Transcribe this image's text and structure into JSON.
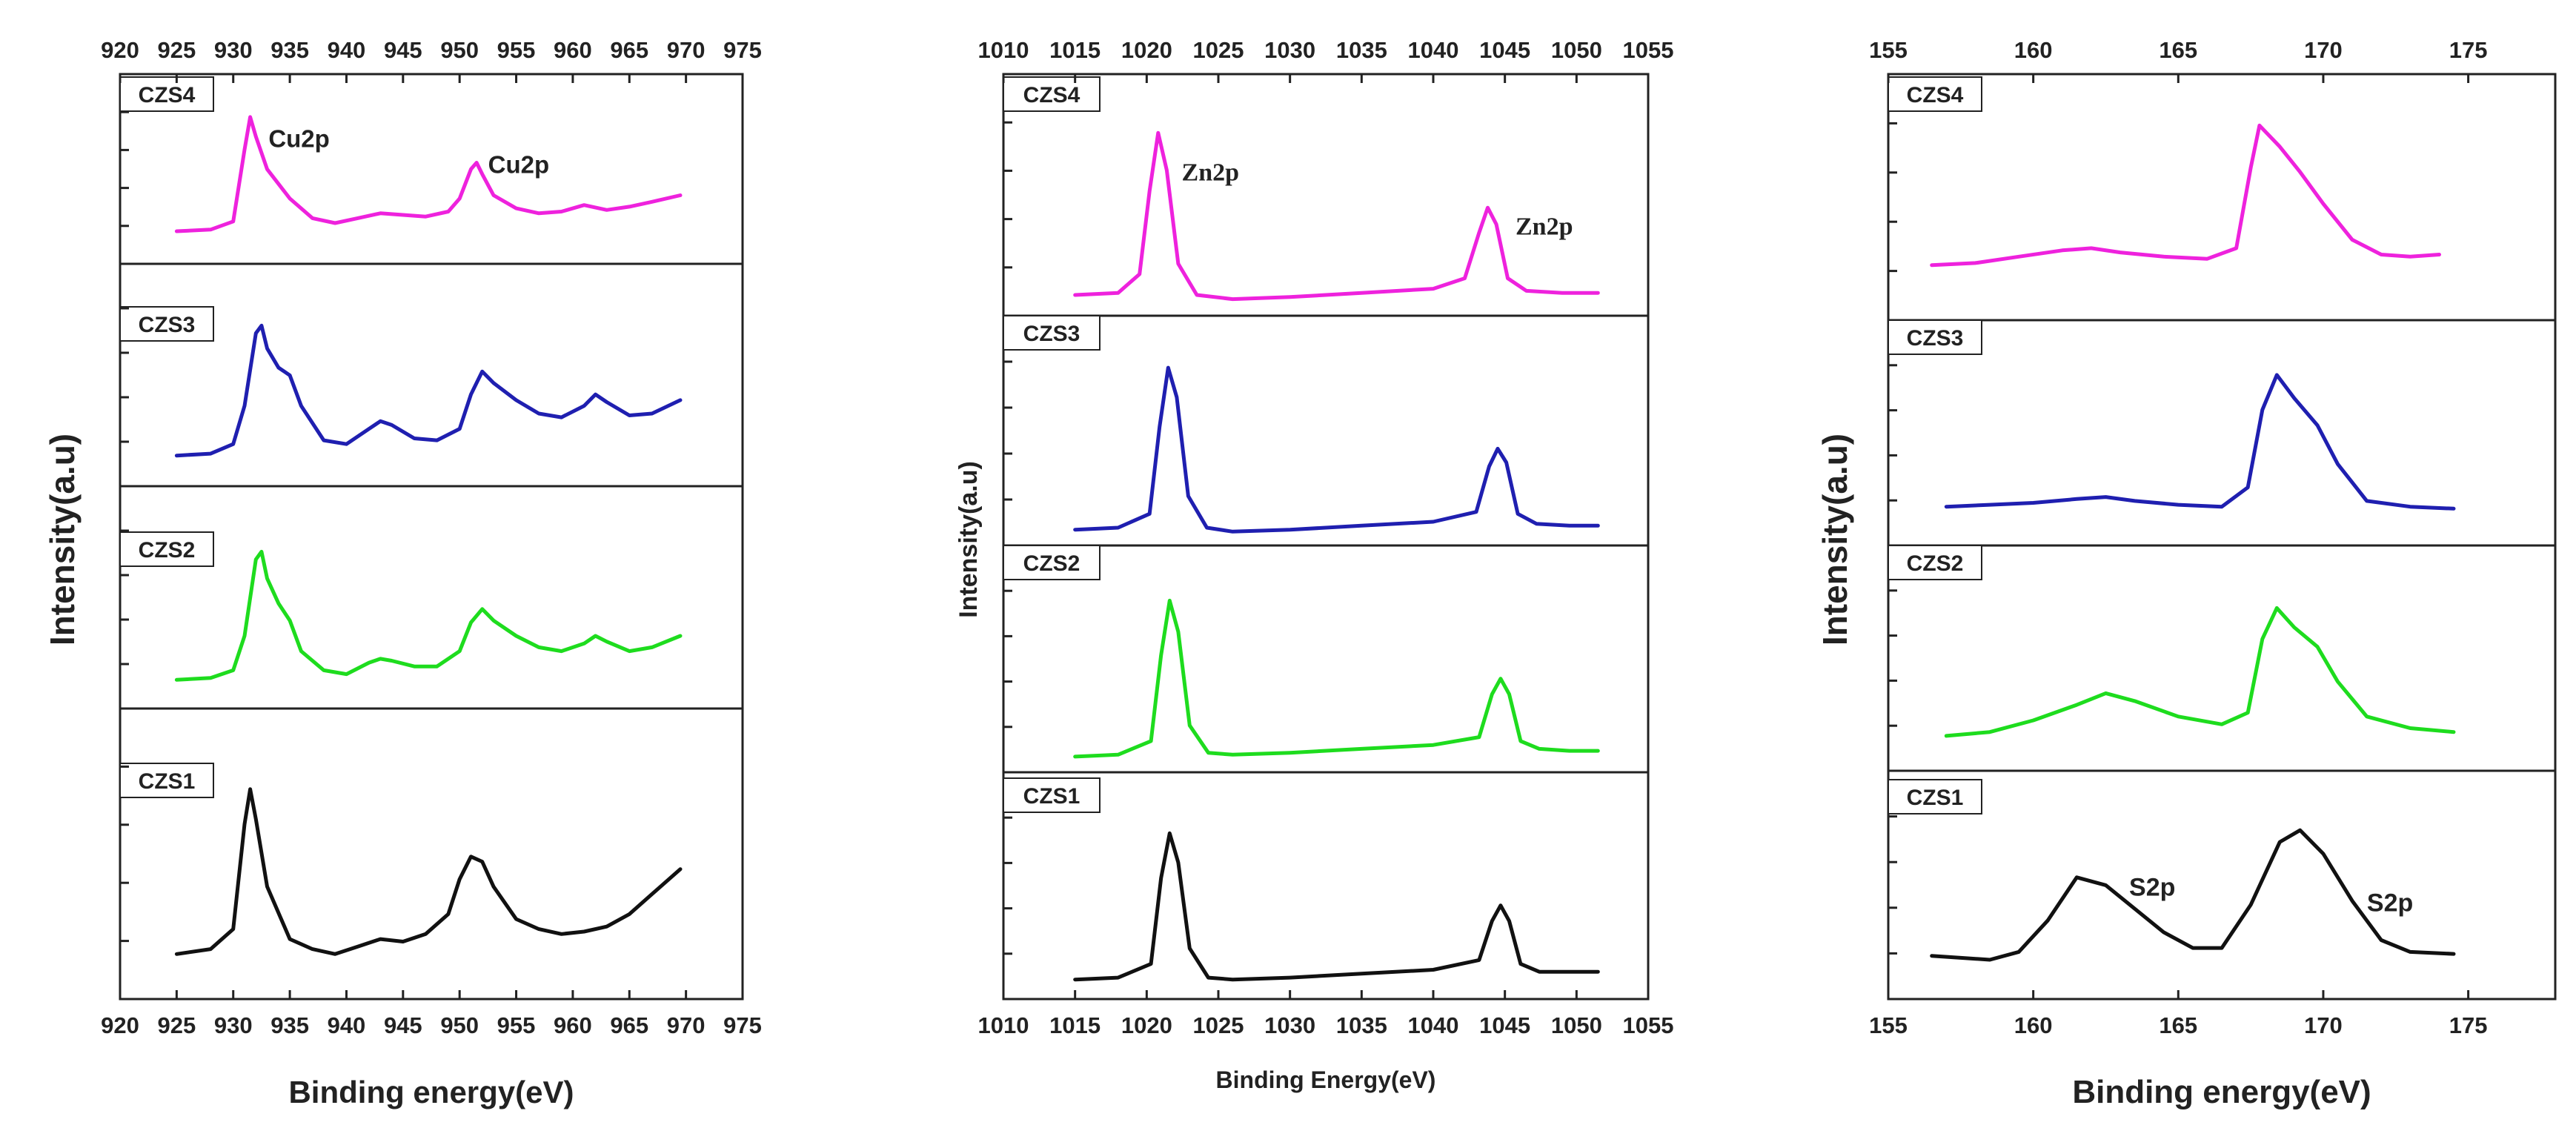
{
  "figure": {
    "y_axis_title": "Intensity(a.u)",
    "sample_order_top_to_bottom": [
      "CZS4",
      "CZS3",
      "CZS2",
      "CZS1"
    ],
    "sample_colors": {
      "CZS4": "#ee22dd",
      "CZS3": "#1f1fb0",
      "CZS2": "#1edc1e",
      "CZS1": "#111111"
    }
  },
  "chart_data": [
    {
      "type": "line",
      "element": "Cu2p",
      "xlabel": "Binding energy(eV)",
      "ylabel": "Intensity(a.u)",
      "xlim": [
        920,
        975
      ],
      "xticks": [
        920,
        925,
        930,
        935,
        940,
        945,
        950,
        955,
        960,
        965,
        970,
        975
      ],
      "ylim": [
        0,
        100
      ],
      "annotations": [
        {
          "panel": "CZS4",
          "text": "Cu2p",
          "x": 932.2
        },
        {
          "panel": "CZS4",
          "text": "Cu2p",
          "x": 951.6
        }
      ],
      "series": [
        {
          "name": "CZS4",
          "color": "#ee22dd",
          "x": [
            925,
            928,
            930,
            931,
            931.5,
            932,
            933,
            935,
            937,
            939,
            941,
            943,
            945,
            947,
            949,
            950,
            951,
            951.5,
            952,
            953,
            955,
            957,
            959,
            961,
            963,
            965,
            967,
            969.5
          ],
          "y": [
            20,
            21,
            26,
            70,
            90,
            78,
            58,
            40,
            28,
            25,
            28,
            31,
            30,
            29,
            32,
            40,
            58,
            62,
            55,
            42,
            34,
            31,
            32,
            36,
            33,
            35,
            38,
            42
          ]
        },
        {
          "name": "CZS3",
          "color": "#1f1fb0",
          "x": [
            925,
            928,
            930,
            931,
            932,
            932.5,
            933,
            934,
            935,
            936,
            938,
            940,
            942,
            943,
            944,
            946,
            948,
            950,
            951,
            952,
            953,
            955,
            957,
            959,
            961,
            962,
            963,
            965,
            967,
            969.5
          ],
          "y": [
            16,
            17,
            22,
            42,
            80,
            84,
            72,
            62,
            58,
            42,
            24,
            22,
            30,
            34,
            32,
            25,
            24,
            30,
            48,
            60,
            54,
            45,
            38,
            36,
            42,
            48,
            44,
            37,
            38,
            45
          ]
        },
        {
          "name": "CZS2",
          "color": "#1edc1e",
          "x": [
            925,
            928,
            930,
            931,
            932,
            932.5,
            933,
            934,
            935,
            936,
            938,
            940,
            942,
            943,
            944,
            946,
            948,
            950,
            951,
            952,
            953,
            955,
            957,
            959,
            961,
            962,
            963,
            965,
            967,
            969.5
          ],
          "y": [
            15,
            16,
            20,
            38,
            78,
            82,
            68,
            55,
            46,
            30,
            20,
            18,
            24,
            26,
            25,
            22,
            22,
            30,
            45,
            52,
            46,
            38,
            32,
            30,
            34,
            38,
            35,
            30,
            32,
            38
          ]
        },
        {
          "name": "CZS1",
          "color": "#111111",
          "x": [
            925,
            928,
            930,
            931,
            931.5,
            932,
            933,
            935,
            937,
            939,
            941,
            943,
            945,
            947,
            949,
            950,
            951,
            952,
            953,
            955,
            957,
            959,
            961,
            963,
            965,
            967,
            969.5
          ],
          "y": [
            18,
            20,
            28,
            70,
            84,
            72,
            45,
            24,
            20,
            18,
            21,
            24,
            23,
            26,
            34,
            48,
            57,
            55,
            45,
            32,
            28,
            26,
            27,
            29,
            34,
            42,
            52
          ]
        }
      ]
    },
    {
      "type": "line",
      "element": "Zn2p",
      "xlabel": "Binding Energy(eV)",
      "ylabel": "Intensity(a.u)",
      "xlim": [
        1010,
        1055
      ],
      "xticks": [
        1010,
        1015,
        1020,
        1025,
        1030,
        1035,
        1040,
        1045,
        1050,
        1055
      ],
      "ylim": [
        0,
        100
      ],
      "annotations": [
        {
          "panel": "CZS4",
          "text": "Zn2p",
          "x": 1021.2
        },
        {
          "panel": "CZS4",
          "text": "Zn2p",
          "x": 1044.5
        }
      ],
      "series": [
        {
          "name": "CZS4",
          "color": "#ee22dd",
          "x": [
            1015,
            1018,
            1019.5,
            1020.2,
            1020.8,
            1021.4,
            1022.2,
            1023.5,
            1026,
            1030,
            1035,
            1040,
            1042.2,
            1043.2,
            1043.8,
            1044.4,
            1045.2,
            1046.5,
            1049,
            1051.5
          ],
          "y": [
            10,
            11,
            20,
            60,
            88,
            70,
            25,
            10,
            8,
            9,
            11,
            13,
            18,
            40,
            52,
            44,
            18,
            12,
            11,
            11
          ]
        },
        {
          "name": "CZS3",
          "color": "#1f1fb0",
          "x": [
            1015,
            1018,
            1020.2,
            1020.9,
            1021.5,
            1022.1,
            1022.9,
            1024.2,
            1026,
            1030,
            1035,
            1040,
            1043,
            1043.9,
            1044.5,
            1045.1,
            1045.9,
            1047.2,
            1049.5,
            1051.5
          ],
          "y": [
            8,
            9,
            16,
            60,
            90,
            75,
            25,
            9,
            7,
            8,
            10,
            12,
            17,
            40,
            49,
            42,
            16,
            11,
            10,
            10
          ]
        },
        {
          "name": "CZS2",
          "color": "#1edc1e",
          "x": [
            1015,
            1018,
            1020.3,
            1021,
            1021.6,
            1022.2,
            1023,
            1024.3,
            1026,
            1030,
            1035,
            1040,
            1043.2,
            1044.1,
            1044.7,
            1045.3,
            1046.1,
            1047.4,
            1049.5,
            1051.5
          ],
          "y": [
            8,
            9,
            16,
            60,
            88,
            72,
            24,
            10,
            9,
            10,
            12,
            14,
            18,
            40,
            48,
            40,
            16,
            12,
            11,
            11
          ]
        },
        {
          "name": "CZS1",
          "color": "#111111",
          "x": [
            1015,
            1018,
            1020.3,
            1021,
            1021.6,
            1022.2,
            1023,
            1024.3,
            1026,
            1030,
            1035,
            1040,
            1043.2,
            1044.1,
            1044.7,
            1045.3,
            1046.1,
            1047.4,
            1049.5,
            1051.5
          ],
          "y": [
            10,
            11,
            18,
            62,
            85,
            70,
            26,
            11,
            10,
            11,
            13,
            15,
            20,
            40,
            48,
            40,
            18,
            14,
            14,
            14
          ]
        }
      ]
    },
    {
      "type": "line",
      "element": "S2p",
      "xlabel": "Binding energy(eV)",
      "ylabel": "Intensity(a.u)",
      "xlim": [
        155,
        178
      ],
      "xticks": [
        155,
        160,
        165,
        170,
        175
      ],
      "ylim": [
        0,
        100
      ],
      "annotations": [
        {
          "panel": "CZS1",
          "text": "S2p",
          "x": 163.0
        },
        {
          "panel": "CZS1",
          "text": "S2p",
          "x": 171.2
        }
      ],
      "series": [
        {
          "name": "CZS4",
          "color": "#ee22dd",
          "x": [
            156.5,
            158,
            159.5,
            161,
            162,
            163,
            164.5,
            166,
            167,
            167.5,
            167.8,
            168.5,
            169.2,
            170,
            171,
            172,
            173,
            174
          ],
          "y": [
            26,
            27,
            30,
            33,
            34,
            32,
            30,
            29,
            34,
            72,
            92,
            82,
            70,
            55,
            38,
            31,
            30,
            31
          ]
        },
        {
          "name": "CZS3",
          "color": "#1f1fb0",
          "x": [
            157,
            158.5,
            160,
            161.5,
            162.5,
            163.5,
            165,
            166.5,
            167.4,
            167.9,
            168.4,
            169,
            169.8,
            170.5,
            171.5,
            173,
            174.5
          ],
          "y": [
            20,
            21,
            22,
            24,
            25,
            23,
            21,
            20,
            30,
            70,
            88,
            76,
            62,
            42,
            23,
            20,
            19
          ]
        },
        {
          "name": "CZS2",
          "color": "#1edc1e",
          "x": [
            157,
            158.5,
            160,
            161.5,
            162.5,
            163.5,
            165,
            166.5,
            167.4,
            167.9,
            168.4,
            169,
            169.8,
            170.5,
            171.5,
            173,
            174.5
          ],
          "y": [
            18,
            20,
            26,
            34,
            40,
            36,
            28,
            24,
            30,
            68,
            84,
            74,
            64,
            46,
            28,
            22,
            20
          ]
        },
        {
          "name": "CZS1",
          "color": "#111111",
          "x": [
            156.5,
            157.5,
            158.5,
            159.5,
            160.5,
            161.5,
            162.5,
            163.5,
            164.5,
            165.5,
            166.5,
            167.5,
            168.5,
            169.2,
            170,
            171,
            172,
            173,
            174.5
          ],
          "y": [
            22,
            21,
            20,
            24,
            40,
            62,
            58,
            46,
            34,
            26,
            26,
            48,
            80,
            86,
            74,
            50,
            30,
            24,
            23
          ]
        }
      ]
    }
  ]
}
